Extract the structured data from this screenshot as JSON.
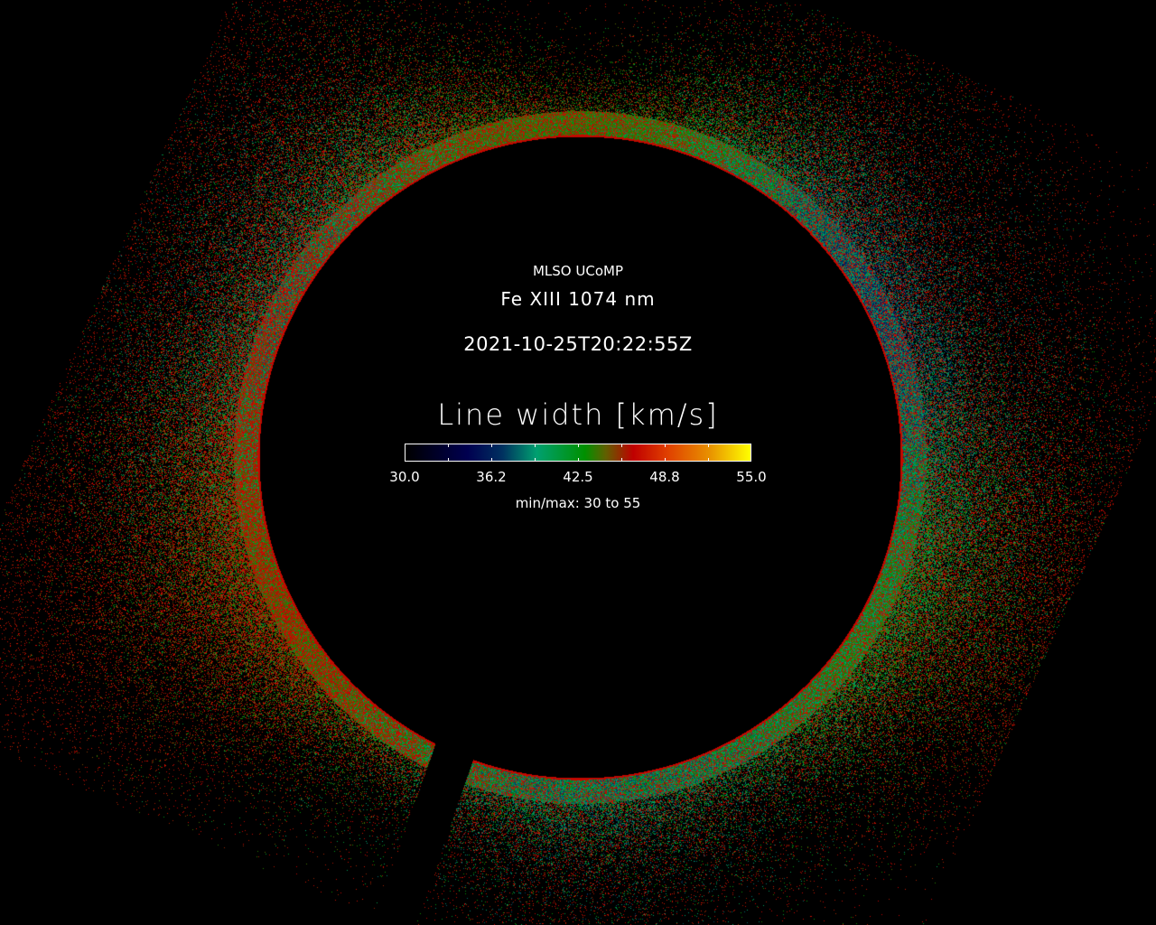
{
  "image": {
    "observatory": "MLSO UCoMP",
    "line": "Fe XIII 1074 nm",
    "timestamp": "2021-10-25T20:22:55Z",
    "quantity": "Line width [km/s]",
    "colorbar": {
      "ticks": [
        "30.0",
        "36.2",
        "42.5",
        "48.8",
        "55.0"
      ],
      "min": 30,
      "max": 55,
      "minmax_label": "min/max: 30 to 55",
      "colors": [
        "#000000",
        "#000050",
        "#00a070",
        "#009000",
        "#c00000",
        "#e04000",
        "#e89000",
        "#ffff00"
      ]
    }
  }
}
